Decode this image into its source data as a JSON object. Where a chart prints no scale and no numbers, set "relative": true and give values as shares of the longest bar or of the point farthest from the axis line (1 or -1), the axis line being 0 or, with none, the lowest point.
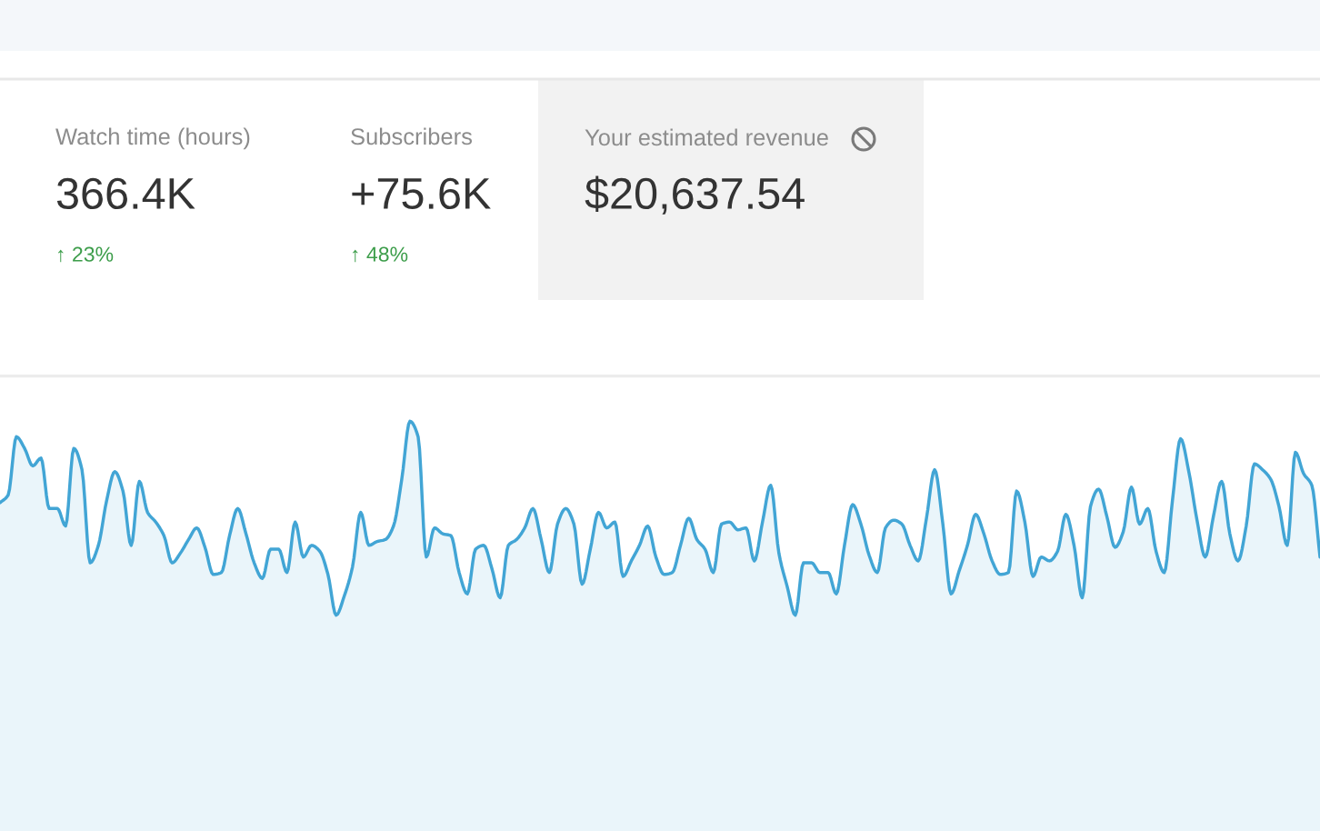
{
  "chart_data": [
    {
      "type": "other",
      "annotations": [
        "Watch time (hours)",
        "366.4K",
        "↑ 23%",
        "Subscribers",
        "+75.6K",
        "↑ 48%",
        "Your estimated revenue",
        "$20,637.54"
      ]
    },
    {
      "type": "area",
      "relative": true,
      "categories": [
        null,
        null,
        null,
        null,
        null,
        null,
        null,
        null,
        null,
        null,
        null,
        null,
        null,
        null,
        null,
        null,
        null,
        null,
        null,
        null,
        null,
        null,
        null,
        null,
        null,
        null,
        null,
        null,
        null,
        null,
        null,
        null,
        null,
        null,
        null,
        null,
        null,
        null,
        null,
        null,
        null,
        null,
        null,
        null,
        null,
        null,
        null,
        null,
        null,
        null,
        null,
        null,
        null,
        null,
        null,
        null,
        null,
        null,
        null,
        null,
        null,
        null,
        null,
        null,
        null,
        null,
        null,
        null,
        null,
        null,
        null,
        null,
        null,
        null,
        null,
        null,
        null,
        null,
        null,
        null,
        null,
        null,
        null,
        null,
        null,
        null,
        null,
        null,
        null,
        null,
        null,
        null,
        null,
        null,
        null,
        null,
        null,
        null,
        null,
        null,
        null,
        null,
        null,
        null,
        null,
        null,
        null,
        null,
        null,
        null,
        null,
        null,
        null,
        null,
        null,
        null,
        null,
        null,
        null,
        null,
        null,
        null,
        null,
        null,
        null,
        null,
        null,
        null,
        null,
        null,
        null,
        null,
        null,
        null,
        null,
        null,
        null,
        null,
        null,
        null,
        null,
        null,
        null,
        null,
        null,
        null,
        null,
        null,
        null,
        null,
        null,
        null,
        null,
        null,
        null,
        null,
        null,
        null,
        null,
        null,
        null,
        null
      ],
      "series": [
        {
          "color": "#42a5d5",
          "values": [
            0.58,
            0.62,
            0.92,
            0.86,
            0.77,
            0.81,
            0.55,
            0.55,
            0.46,
            0.86,
            0.75,
            0.27,
            0.36,
            0.59,
            0.74,
            0.64,
            0.36,
            0.69,
            0.53,
            0.48,
            0.41,
            0.27,
            0.32,
            0.39,
            0.45,
            0.35,
            0.21,
            0.22,
            0.41,
            0.55,
            0.42,
            0.27,
            0.19,
            0.34,
            0.34,
            0.22,
            0.48,
            0.3,
            0.36,
            0.33,
            0.21,
            0,
            0.1,
            0.25,
            0.53,
            0.36,
            0.38,
            0.39,
            0.46,
            0.7,
            1,
            0.92,
            0.3,
            0.45,
            0.42,
            0.41,
            0.22,
            0.11,
            0.34,
            0.36,
            0.24,
            0.09,
            0.36,
            0.39,
            0.45,
            0.55,
            0.39,
            0.22,
            0.47,
            0.55,
            0.47,
            0.16,
            0.34,
            0.53,
            0.45,
            0.48,
            0.2,
            0.28,
            0.36,
            0.46,
            0.3,
            0.21,
            0.22,
            0.36,
            0.5,
            0.39,
            0.34,
            0.22,
            0.47,
            0.48,
            0.44,
            0.45,
            0.28,
            0.48,
            0.67,
            0.32,
            0.15,
            0,
            0.27,
            0.27,
            0.22,
            0.22,
            0.11,
            0.36,
            0.57,
            0.47,
            0.31,
            0.22,
            0.45,
            0.49,
            0.47,
            0.36,
            0.28,
            0.5,
            0.75,
            0.47,
            0.11,
            0.23,
            0.36,
            0.52,
            0.42,
            0.28,
            0.21,
            0.22,
            0.64,
            0.48,
            0.2,
            0.3,
            0.28,
            0.33,
            0.52,
            0.36,
            0.09,
            0.56,
            0.65,
            0.51,
            0.35,
            0.43,
            0.66,
            0.47,
            0.55,
            0.33,
            0.22,
            0.59,
            0.91,
            0.74,
            0.49,
            0.3,
            0.51,
            0.69,
            0.42,
            0.28,
            0.46,
            0.78,
            0.75,
            0.7,
            0.56,
            0.36,
            0.84,
            0.73,
            0.67,
            0.3
          ]
        }
      ]
    }
  ]
}
